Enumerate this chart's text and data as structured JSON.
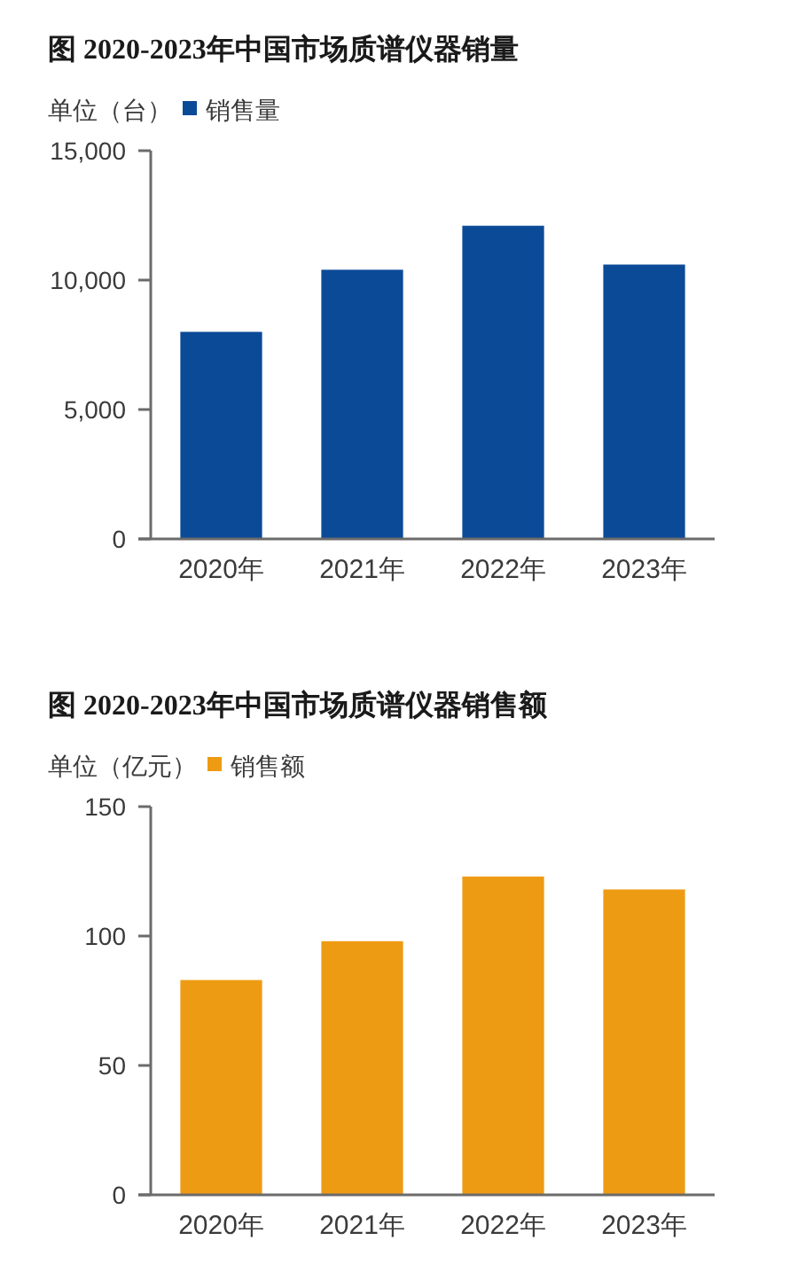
{
  "chart_data": [
    {
      "type": "bar",
      "title": "图 2020-2023年中国市场质谱仪器销量",
      "ylabel": "单位（台）",
      "categories": [
        "2020年",
        "2021年",
        "2022年",
        "2023年"
      ],
      "series": [
        {
          "name": "销售量",
          "color": "#0b4a97",
          "values": [
            8000,
            10400,
            12100,
            10600
          ]
        }
      ],
      "ylim": [
        0,
        15000
      ],
      "yticks": [
        0,
        {
          "value": 5000,
          "label": "5,000"
        },
        {
          "value": 10000,
          "label": "10,000"
        },
        {
          "value": 15000,
          "label": "15,000"
        }
      ],
      "legend": "top left"
    },
    {
      "type": "bar",
      "title": "图 2020-2023年中国市场质谱仪器销售额",
      "ylabel": "单位（亿元）",
      "categories": [
        "2020年",
        "2021年",
        "2022年",
        "2023年"
      ],
      "series": [
        {
          "name": "销售额",
          "color": "#ee9b14",
          "values": [
            83,
            98,
            123,
            118
          ]
        }
      ],
      "ylim": [
        0,
        150
      ],
      "yticks": [
        0,
        50,
        100,
        150
      ],
      "legend": "top left"
    }
  ]
}
